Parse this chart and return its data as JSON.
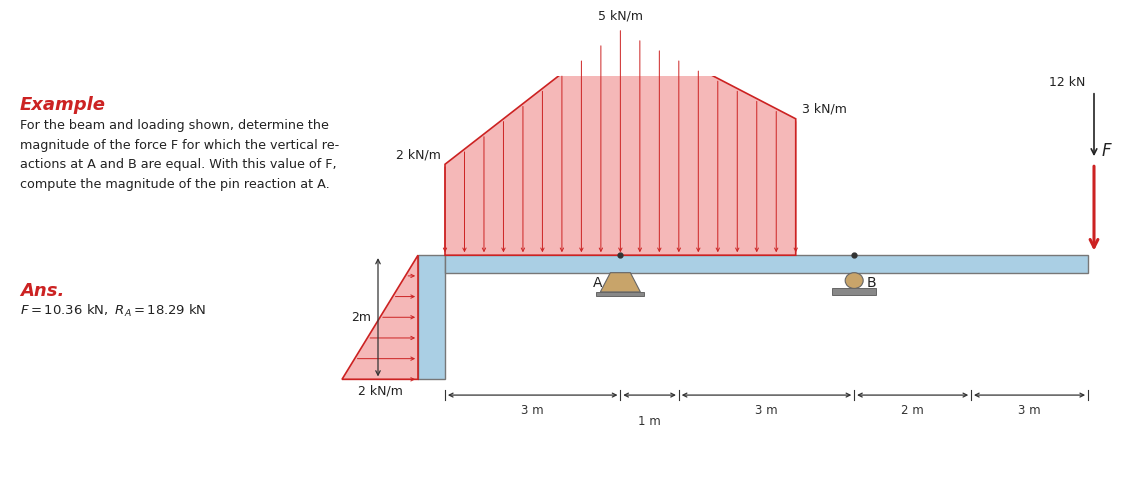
{
  "title": "Example",
  "subtitle": "For the beam and loading shown, determine the\nmagnitude of the force F for which the vertical re-\nactions at A and B are equal. With this value of F,\ncompute the magnitude of the pin reaction at A.",
  "ans_label": "Ans.",
  "ans_formula": "$F = 10.36\\ \\mathrm{kN},\\ R_A = 18.29\\ \\mathrm{kN}$",
  "label_12kN": "12 kN",
  "label_5kNm": "5 kN/m",
  "label_2kNm_left": "2 kN/m",
  "label_3kNm_right": "3 kN/m",
  "label_2kNm_bottom": "2 kN/m",
  "label_F": "F",
  "label_A": "A",
  "label_B": "B",
  "label_2m": "2m",
  "dim_3m_1": "3 m",
  "dim_1m": "1 m",
  "dim_3m_2": "3 m",
  "dim_2m": "2 m",
  "dim_3m_3": "3 m",
  "beam_color": "#aacfe4",
  "beam_edge_color": "#777777",
  "load_fill": "#f5b8b8",
  "load_edge": "#cc2222",
  "support_color": "#c8a46a",
  "support_base_color": "#aaaaaa",
  "dark_color": "#222222",
  "red_color": "#cc2222",
  "wall_tick_color": "#cc2222",
  "dim_color": "#333333"
}
